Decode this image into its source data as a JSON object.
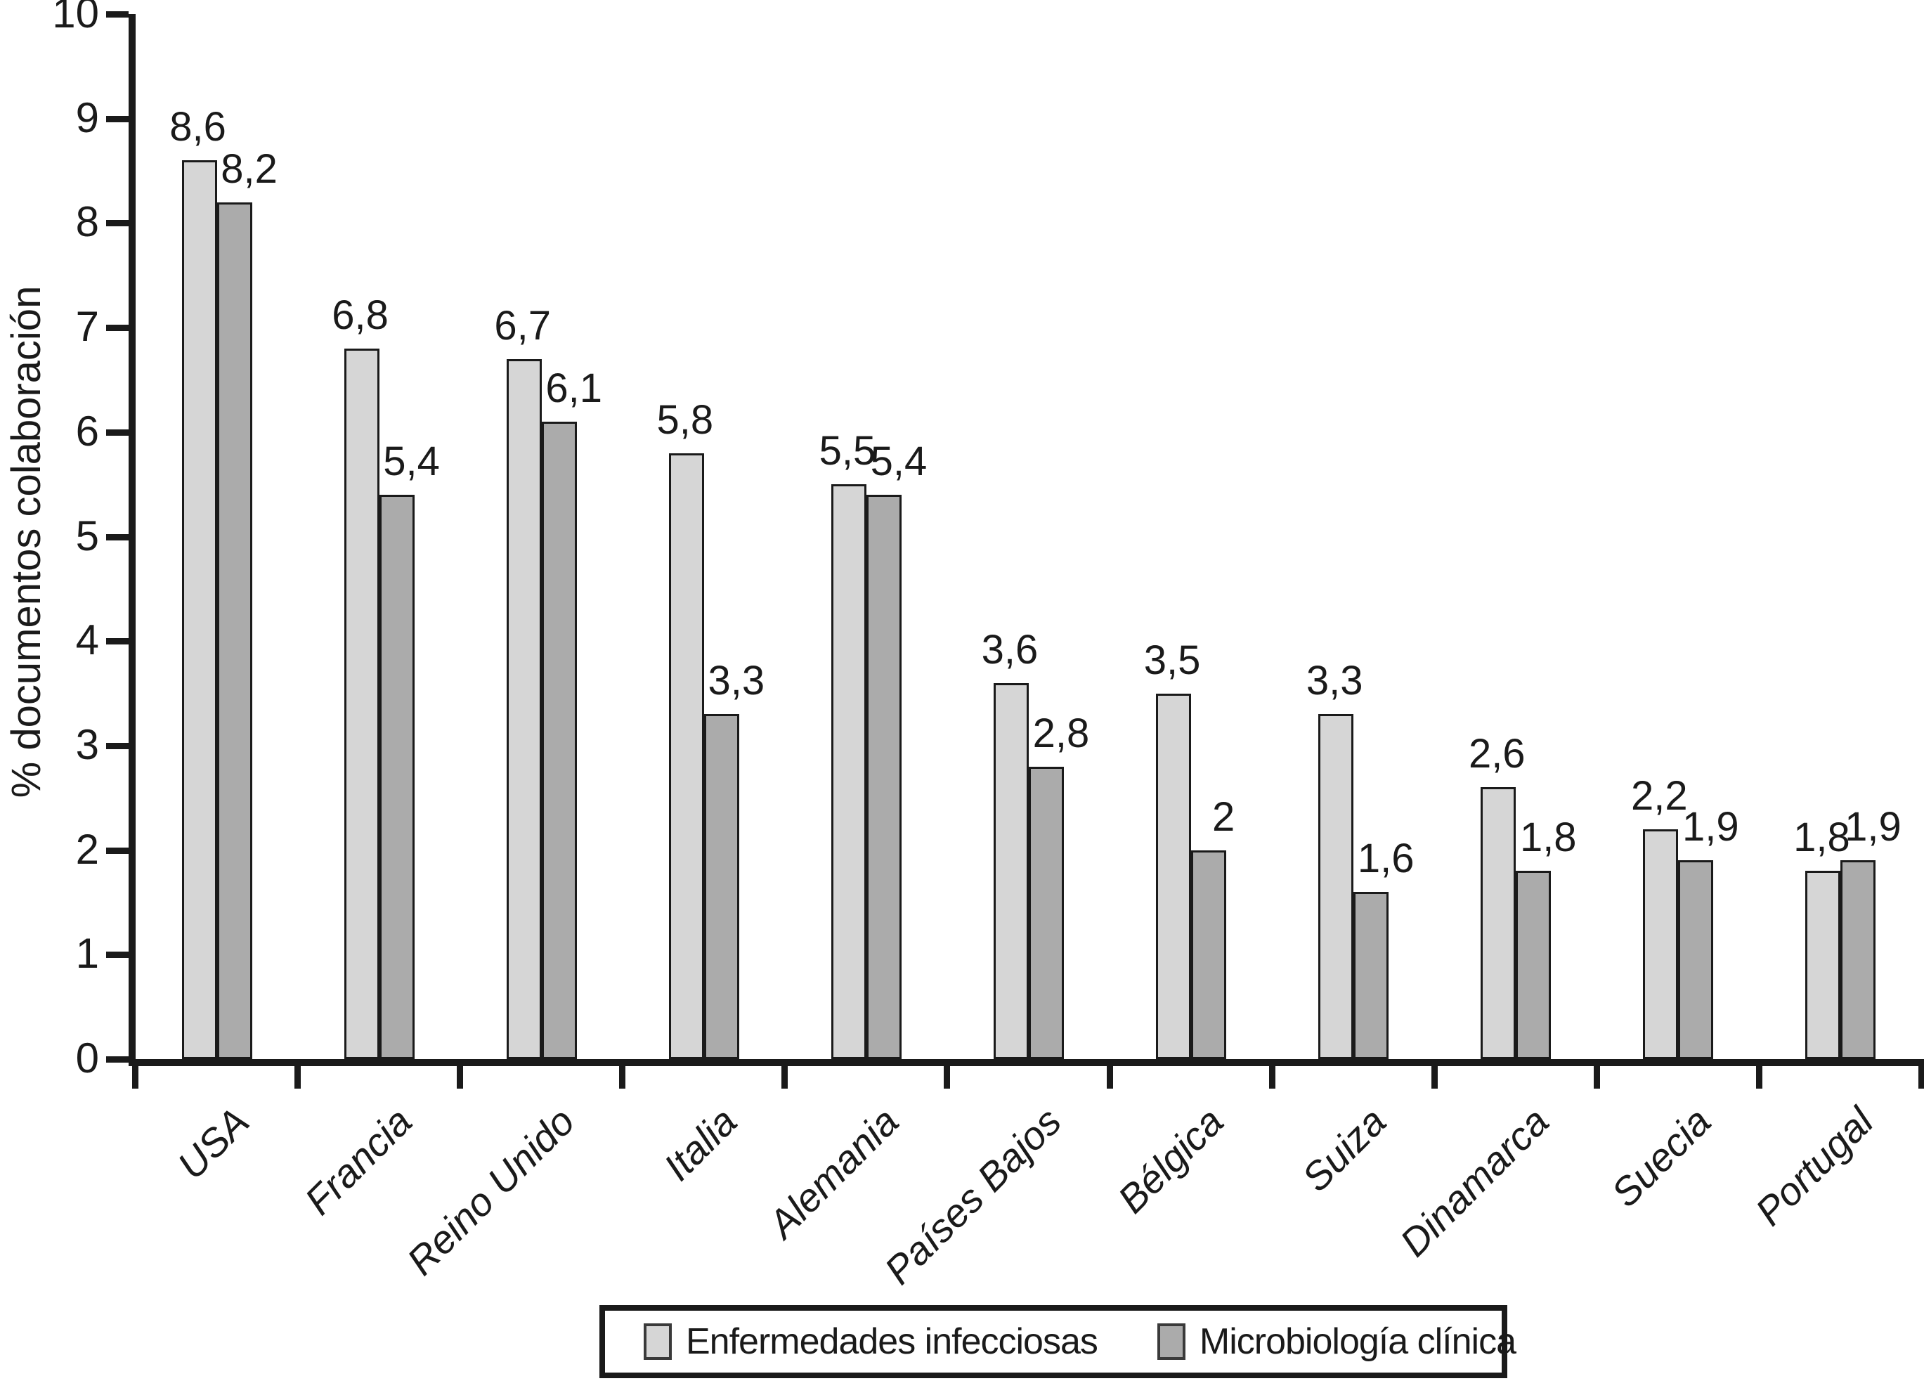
{
  "chart_data": {
    "type": "bar",
    "title": "",
    "xlabel": "",
    "ylabel": "% documentos colaboración",
    "ylim": [
      0,
      10
    ],
    "yticks": [
      0,
      1,
      2,
      3,
      4,
      5,
      6,
      7,
      8,
      9,
      10
    ],
    "grid": false,
    "legend_position": "bottom",
    "decimal_separator": ",",
    "categories": [
      "USA",
      "Francia",
      "Reino Unido",
      "Italia",
      "Alemania",
      "Países Bajos",
      "Bélgica",
      "Suiza",
      "Dinamarca",
      "Suecia",
      "Portugal"
    ],
    "series": [
      {
        "name": "Enfermedades infecciosas",
        "color": "#d6d6d6",
        "values": [
          8.6,
          6.8,
          6.7,
          5.8,
          5.5,
          3.6,
          3.5,
          3.3,
          2.6,
          2.2,
          1.8
        ],
        "labels": [
          "8,6",
          "6,8",
          "6,7",
          "5,8",
          "5,5",
          "3,6",
          "3,5",
          "3,3",
          "2,6",
          "2,2",
          "1,8"
        ]
      },
      {
        "name": "Microbiología clínica",
        "color": "#ababab",
        "values": [
          8.2,
          5.4,
          6.1,
          3.3,
          5.4,
          2.8,
          2.0,
          1.6,
          1.8,
          1.9,
          1.9
        ],
        "labels": [
          "8,2",
          "5,4",
          "6,1",
          "3,3",
          "5,4",
          "2,8",
          "2",
          "1,6",
          "1,8",
          "1,9",
          "1,9"
        ]
      }
    ]
  },
  "colors": {
    "axis": "#1a1a1a",
    "text": "#1a1a1a",
    "background": "#ffffff"
  }
}
